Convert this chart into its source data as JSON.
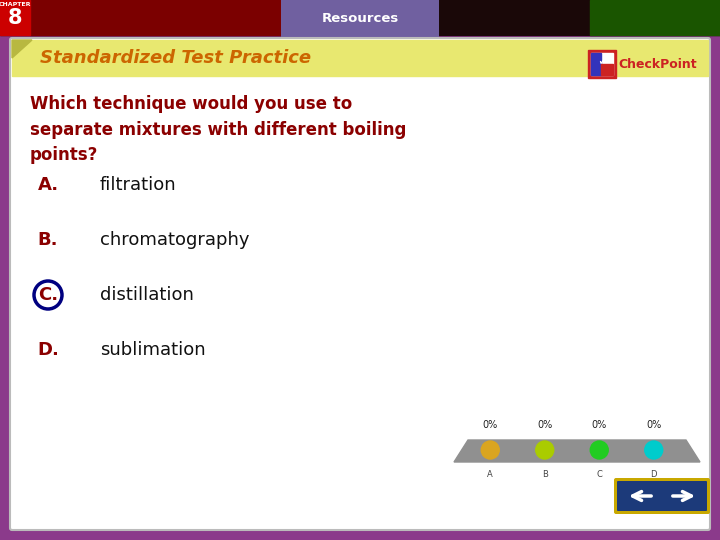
{
  "title": "Standardized Test Practice",
  "resources_tab": "Resources",
  "chapter_num": "8",
  "question": "Which technique would you use to\nseparate mixtures with different boiling\npoints?",
  "options": [
    {
      "letter": "A.",
      "text": "filtration",
      "circled": false
    },
    {
      "letter": "B.",
      "text": "chromatography",
      "circled": false
    },
    {
      "letter": "C.",
      "text": "distillation",
      "circled": true
    },
    {
      "letter": "D.",
      "text": "sublimation",
      "circled": false
    }
  ],
  "bg_outer": "#8B3A8B",
  "bg_inner": "#FFFFFF",
  "title_bg": "#E8E870",
  "title_text_color": "#CC6600",
  "question_color": "#8B0000",
  "option_letter_color": "#8B0000",
  "circle_color": "#000080",
  "poll_bar_colors": [
    "#DAA520",
    "#AACC00",
    "#22CC22",
    "#00CCCC"
  ],
  "poll_labels": [
    "A",
    "B",
    "C",
    "D"
  ],
  "poll_pct": [
    "0%",
    "0%",
    "0%",
    "0%"
  ],
  "header_dark": "#1A0808",
  "header_red": "#7B0000",
  "header_green": "#1A5500",
  "tab_color": "#7060A0"
}
